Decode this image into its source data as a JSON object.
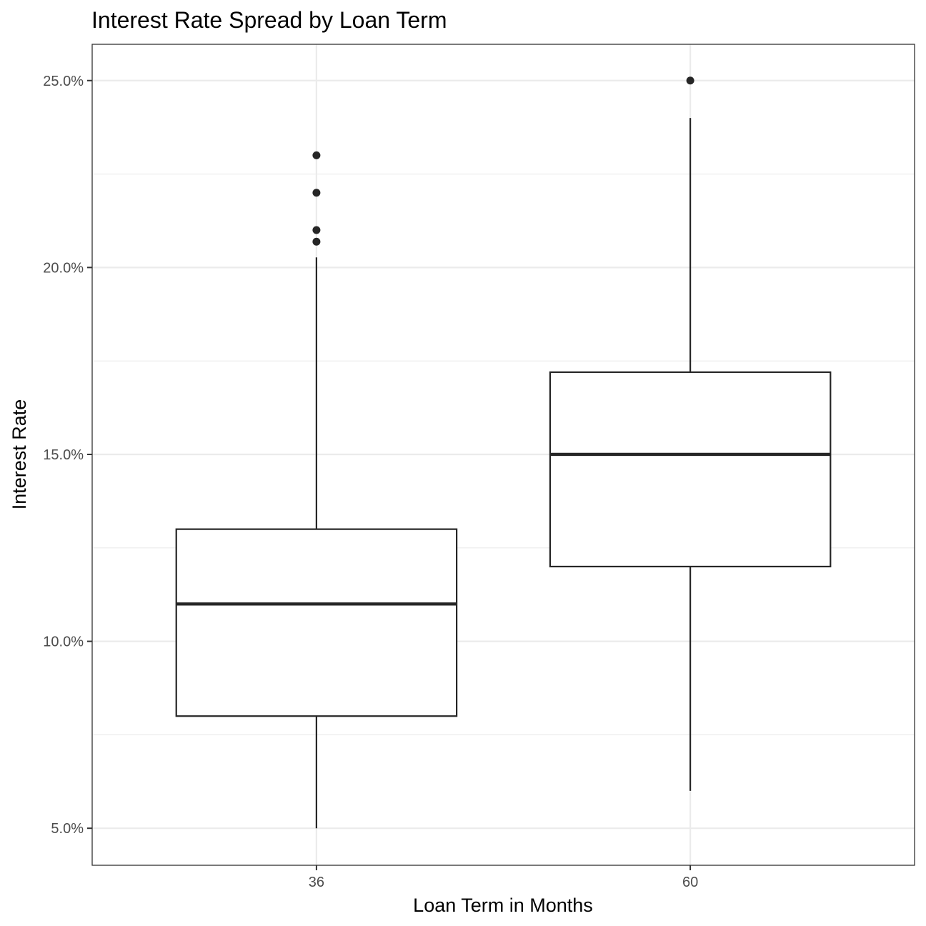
{
  "chart_data": {
    "type": "boxplot",
    "title": "Interest Rate Spread by Loan Term",
    "xlabel": "Loan Term in Months",
    "ylabel": "Interest Rate",
    "categories": [
      "36",
      "60"
    ],
    "ylim": [
      0.0401,
      0.2597
    ],
    "yticks": [
      0.05,
      0.1,
      0.15,
      0.2,
      0.25
    ],
    "ytick_labels": [
      "5.0%",
      "10.0%",
      "15.0%",
      "20.0%",
      "25.0%"
    ],
    "grid": true,
    "boxes": [
      {
        "category": "36",
        "whisker_low": 0.05,
        "q1": 0.08,
        "median": 0.11,
        "q3": 0.13,
        "whisker_high": 0.2027,
        "outliers": [
          0.23,
          0.22,
          0.21,
          0.2069
        ]
      },
      {
        "category": "60",
        "whisker_low": 0.06,
        "q1": 0.12,
        "median": 0.15,
        "q3": 0.172,
        "whisker_high": 0.24,
        "outliers": [
          0.25
        ]
      }
    ],
    "colors": {
      "line": "#262626",
      "grid": "#ebebeb",
      "panel_border": "#333333"
    }
  }
}
